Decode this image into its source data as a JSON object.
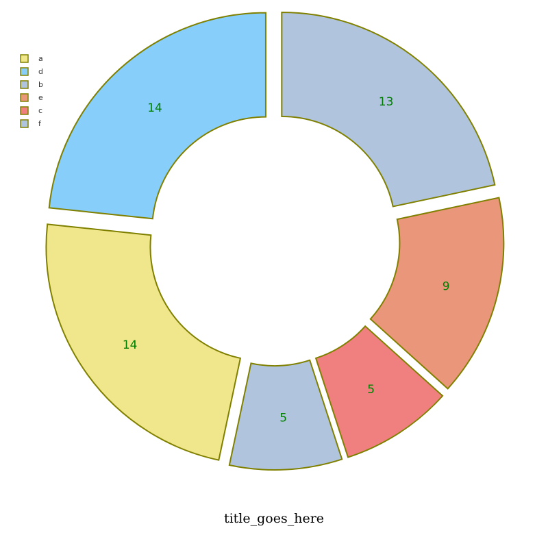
{
  "chart_data": {
    "type": "pie",
    "style": "donut",
    "title": "title_goes_here",
    "legend_position": "top-left",
    "start_direction": "counterclockwise-from-top",
    "slices": [
      {
        "label": "a",
        "value": 14,
        "color": "#F0E68C"
      },
      {
        "label": "d",
        "value": 14,
        "color": "#87CEFA"
      },
      {
        "label": "b",
        "value": 13,
        "color": "#B0C4DE"
      },
      {
        "label": "e",
        "value": 9,
        "color": "#E9967A"
      },
      {
        "label": "c",
        "value": 5,
        "color": "#F08080"
      },
      {
        "label": "f",
        "value": 5,
        "color": "#B0C4DE"
      }
    ],
    "slice_order": [
      "d",
      "a",
      "f",
      "c",
      "e",
      "b"
    ],
    "border_color": "#808000",
    "label_color": "#008000"
  }
}
